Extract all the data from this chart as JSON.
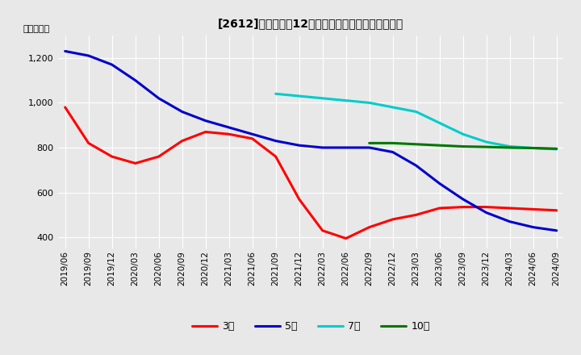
{
  "title": "[2612]　経常利益12か月移動合計の標準偏差の推移",
  "ylabel": "（百万円）",
  "ylim": [
    350,
    1300
  ],
  "yticks": [
    400,
    600,
    800,
    1000,
    1200
  ],
  "background_color": "#e8e8e8",
  "grid_color": "#ffffff",
  "series": {
    "3年": {
      "color": "#ff0000",
      "x": [
        "2019/06",
        "2019/09",
        "2019/12",
        "2020/03",
        "2020/06",
        "2020/09",
        "2020/12",
        "2021/03",
        "2021/06",
        "2021/09",
        "2021/12",
        "2022/03",
        "2022/06",
        "2022/09",
        "2022/12",
        "2023/03",
        "2023/06",
        "2023/09",
        "2023/12",
        "2024/03",
        "2024/06",
        "2024/09"
      ],
      "y": [
        980,
        820,
        760,
        730,
        760,
        830,
        870,
        860,
        840,
        760,
        570,
        430,
        395,
        445,
        480,
        500,
        530,
        535,
        535,
        530,
        525,
        520
      ]
    },
    "5年": {
      "color": "#0000cc",
      "x": [
        "2019/06",
        "2019/09",
        "2019/12",
        "2020/03",
        "2020/06",
        "2020/09",
        "2020/12",
        "2021/03",
        "2021/06",
        "2021/09",
        "2021/12",
        "2022/03",
        "2022/06",
        "2022/09",
        "2022/12",
        "2023/03",
        "2023/06",
        "2023/09",
        "2023/12",
        "2024/03",
        "2024/06",
        "2024/09"
      ],
      "y": [
        1230,
        1210,
        1170,
        1100,
        1020,
        960,
        920,
        890,
        860,
        830,
        810,
        800,
        800,
        800,
        780,
        720,
        640,
        570,
        510,
        470,
        445,
        430
      ]
    },
    "7年": {
      "color": "#00cccc",
      "x": [
        "2021/09",
        "2021/12",
        "2022/03",
        "2022/06",
        "2022/09",
        "2022/12",
        "2023/03",
        "2023/06",
        "2023/09",
        "2023/12",
        "2024/03",
        "2024/06",
        "2024/09"
      ],
      "y": [
        1040,
        1030,
        1020,
        1010,
        1000,
        980,
        960,
        910,
        860,
        825,
        805,
        798,
        793
      ]
    },
    "10年": {
      "color": "#007700",
      "x": [
        "2022/09",
        "2022/12",
        "2023/03",
        "2023/06",
        "2023/09",
        "2023/12",
        "2024/03",
        "2024/06",
        "2024/09"
      ],
      "y": [
        820,
        820,
        815,
        810,
        805,
        803,
        800,
        798,
        795
      ]
    }
  },
  "x_ticks": [
    "2019/06",
    "2019/09",
    "2019/12",
    "2020/03",
    "2020/06",
    "2020/09",
    "2020/12",
    "2021/03",
    "2021/06",
    "2021/09",
    "2021/12",
    "2022/03",
    "2022/06",
    "2022/09",
    "2022/12",
    "2023/03",
    "2023/06",
    "2023/09",
    "2023/12",
    "2024/03",
    "2024/06",
    "2024/09"
  ],
  "legend_order": [
    "3年",
    "5年",
    "7年",
    "10年"
  ]
}
